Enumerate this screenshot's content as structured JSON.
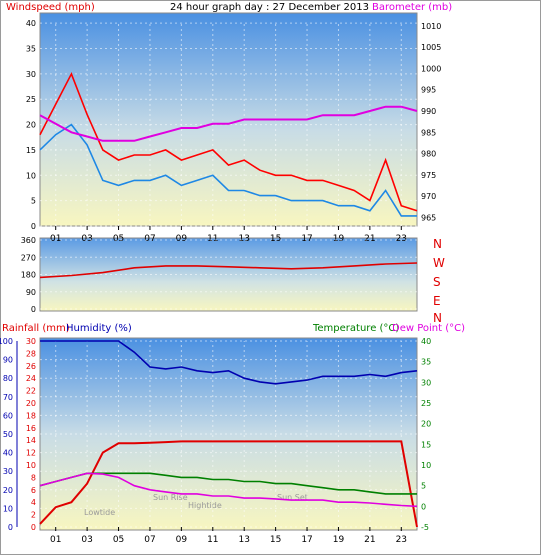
{
  "header": {
    "wind_label": "Windspeed (mph)",
    "title": "24 hour graph day : 27 December 2013",
    "baro_label": "Barometer (mb)"
  },
  "direction_labels": [
    "N",
    "W",
    "S",
    "E",
    "N"
  ],
  "lower_header": {
    "rain_label": "Rainfall (mm)",
    "humidity_label": "Humidity (%)",
    "temp_label": "Temperature (°C)",
    "dew_label": "Dew Point (°C)"
  },
  "annotations": {
    "lowtide": "Lowtide",
    "sunrise": "Sun Rise",
    "hightide": "Hightide",
    "sunset": "Sun Set"
  },
  "colors": {
    "wind": "#ff0000",
    "avg_wind": "#1e88e5",
    "baro": "#e000e0",
    "direction": "#e00000",
    "rain": "#e00000",
    "humidity": "#0000b0",
    "temp": "#008000",
    "dew": "#e000e0"
  },
  "chart_data": [
    {
      "type": "line",
      "panel": "wind_baro",
      "x_hours": [
        0,
        1,
        2,
        3,
        4,
        5,
        6,
        7,
        8,
        9,
        10,
        11,
        12,
        13,
        14,
        15,
        16,
        17,
        18,
        19,
        20,
        21,
        22,
        23,
        24
      ],
      "series": [
        {
          "name": "Windspeed (mph)",
          "axis": "left",
          "values": [
            18,
            24,
            30,
            22,
            15,
            13,
            14,
            14,
            15,
            13,
            14,
            15,
            12,
            13,
            11,
            10,
            10,
            9,
            9,
            8,
            7,
            5,
            13,
            4,
            3
          ]
        },
        {
          "values": [
            15,
            18,
            20,
            16,
            9,
            8,
            9,
            9,
            10,
            8,
            9,
            10,
            7,
            7,
            6,
            6,
            5,
            5,
            5,
            4,
            4,
            3,
            7,
            2,
            2
          ]
        },
        {
          "name": "Barometer (mb)",
          "axis": "right",
          "values": [
            989,
            987,
            985,
            984,
            983,
            983,
            983,
            984,
            985,
            986,
            986,
            987,
            987,
            988,
            988,
            988,
            988,
            988,
            989,
            989,
            989,
            990,
            991,
            991,
            990
          ]
        }
      ],
      "ylim_left": [
        0,
        42
      ],
      "ylim_right": [
        963,
        1013
      ],
      "yticks_left": [
        0,
        5,
        10,
        15,
        20,
        25,
        30,
        35,
        40
      ],
      "yticks_right": [
        965,
        970,
        975,
        980,
        985,
        990,
        995,
        1000,
        1005,
        1010
      ],
      "xticks": [
        "01",
        "03",
        "05",
        "07",
        "09",
        "11",
        "13",
        "15",
        "17",
        "19",
        "21",
        "23"
      ]
    },
    {
      "type": "line",
      "panel": "wind_direction",
      "x_hours": [
        0,
        2,
        4,
        6,
        8,
        10,
        12,
        14,
        16,
        18,
        20,
        22,
        24
      ],
      "values": [
        165,
        175,
        190,
        215,
        225,
        225,
        220,
        215,
        210,
        215,
        225,
        235,
        240
      ],
      "ylim": [
        0,
        360
      ],
      "yticks": [
        0,
        90,
        180,
        270,
        360
      ]
    },
    {
      "type": "line",
      "panel": "rain_humidity_temp",
      "x_hours": [
        0,
        1,
        2,
        3,
        4,
        5,
        6,
        7,
        8,
        9,
        10,
        11,
        12,
        13,
        14,
        15,
        16,
        17,
        18,
        19,
        20,
        21,
        22,
        23,
        24
      ],
      "series": [
        {
          "name": "Rainfall (mm)",
          "axis": "left_rain",
          "values": [
            0.5,
            3.2,
            4,
            7,
            12,
            13.5,
            13.5,
            13.6,
            13.7,
            13.8,
            13.8,
            13.8,
            13.8,
            13.8,
            13.8,
            13.8,
            13.8,
            13.8,
            13.8,
            13.8,
            13.8,
            13.8,
            13.8,
            13.8,
            0
          ]
        },
        {
          "name": "Humidity (%)",
          "axis": "left_humidity",
          "values": [
            100,
            100,
            100,
            100,
            100,
            100,
            94,
            86,
            85,
            86,
            84,
            83,
            84,
            80,
            78,
            77,
            78,
            79,
            81,
            81,
            81,
            82,
            81,
            83,
            84
          ]
        },
        {
          "name": "Temperature (°C)",
          "axis": "right",
          "values": [
            5,
            6,
            7,
            8,
            8,
            8,
            8,
            8,
            7.5,
            7,
            7,
            6.5,
            6.5,
            6,
            6,
            5.5,
            5.5,
            5,
            4.5,
            4,
            4,
            3.5,
            3,
            3,
            3
          ]
        },
        {
          "name": "Dew Point (°C)",
          "axis": "right",
          "values": [
            5,
            6,
            7,
            8,
            7.8,
            7,
            5,
            4,
            3.5,
            3,
            3,
            2.5,
            2.5,
            2,
            2,
            1.8,
            1.5,
            1.5,
            1.5,
            1,
            1,
            0.8,
            0.5,
            0.2,
            0
          ]
        }
      ],
      "ylim_rain": [
        0,
        30
      ],
      "ylim_humidity": [
        0,
        100
      ],
      "ylim_right": [
        -5,
        40
      ],
      "yticks_rain": [
        0,
        2,
        4,
        6,
        8,
        10,
        12,
        14,
        16,
        18,
        20,
        22,
        24,
        26,
        28,
        30
      ],
      "yticks_humidity": [
        0,
        10,
        20,
        30,
        40,
        50,
        60,
        70,
        80,
        90,
        100
      ],
      "yticks_right": [
        -5,
        0,
        5,
        10,
        15,
        20,
        25,
        30,
        35,
        40
      ],
      "xticks": [
        "01",
        "03",
        "05",
        "07",
        "09",
        "11",
        "13",
        "15",
        "17",
        "19",
        "21",
        "23"
      ]
    }
  ]
}
